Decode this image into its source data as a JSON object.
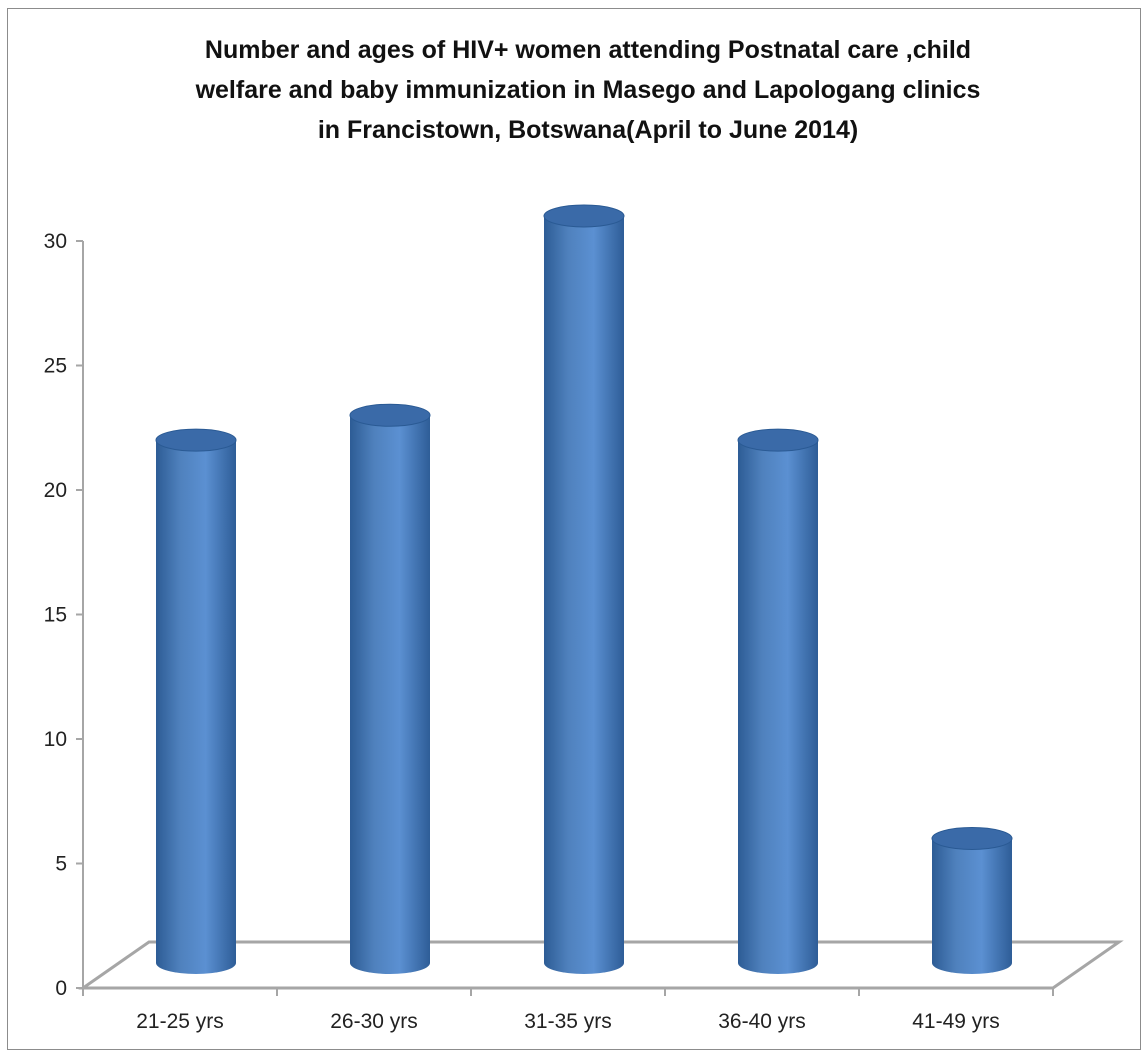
{
  "chart_data": {
    "type": "bar",
    "style": "3d-cylinder",
    "title_lines": [
      "Number and ages of HIV+ women attending Postnatal  care ,child",
      "welfare and baby immunization in Masego and Lapologang  clinics",
      "in Francistown, Botswana(April to June 2014)"
    ],
    "categories": [
      "21-25 yrs",
      "26-30 yrs",
      "31-35 yrs",
      "36-40 yrs",
      "41-49 yrs"
    ],
    "values": [
      21,
      22,
      30,
      21,
      5
    ],
    "ylim": [
      0,
      30
    ],
    "yticks": [
      0,
      5,
      10,
      15,
      20,
      25,
      30
    ],
    "ytick_labels": [
      "0",
      "5",
      "10",
      "15",
      "20",
      "25",
      "30"
    ],
    "xlabel": "",
    "ylabel": "",
    "grid": false,
    "legend": "none",
    "colors": {
      "bar": "#4f81bd",
      "bar_dark": "#2a5a94",
      "bar_top": "#3a6aa8",
      "axis": "#a6a6a6"
    }
  }
}
